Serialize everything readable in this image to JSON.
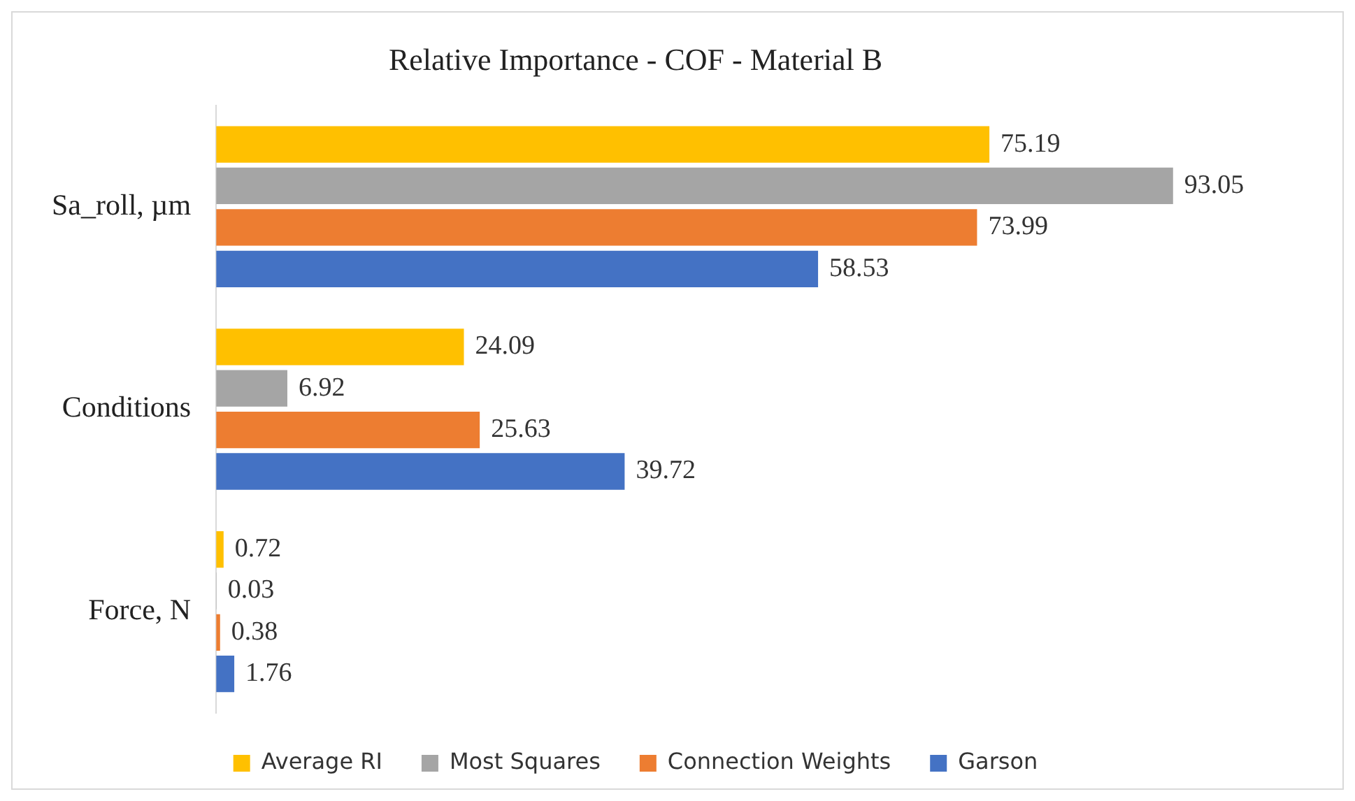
{
  "chart_data": {
    "type": "bar",
    "orientation": "horizontal",
    "title": "Relative Importance - COF - Material B",
    "categories": [
      "Sa_roll, µm",
      "Conditions",
      "Force, N"
    ],
    "series": [
      {
        "name": "Average RI",
        "color": "#ffc000",
        "values": [
          75.19,
          24.09,
          0.72
        ]
      },
      {
        "name": "Most Squares",
        "color": "#a5a5a5",
        "values": [
          93.05,
          6.92,
          0.03
        ]
      },
      {
        "name": "Connection Weights",
        "color": "#ed7d31",
        "values": [
          73.99,
          25.63,
          0.38
        ]
      },
      {
        "name": "Garson",
        "color": "#4472c4",
        "values": [
          58.53,
          39.72,
          1.76
        ]
      }
    ],
    "data_labels": true,
    "grid": false,
    "legend": "bottom"
  }
}
